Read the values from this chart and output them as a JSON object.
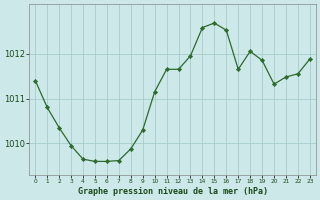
{
  "x": [
    0,
    1,
    2,
    3,
    4,
    5,
    6,
    7,
    8,
    9,
    10,
    11,
    12,
    13,
    14,
    15,
    16,
    17,
    18,
    19,
    20,
    21,
    22,
    23
  ],
  "y": [
    1011.4,
    1010.8,
    1010.35,
    1009.95,
    1009.65,
    1009.6,
    1009.6,
    1009.62,
    1009.88,
    1010.3,
    1011.15,
    1011.65,
    1011.65,
    1011.95,
    1012.58,
    1012.68,
    1012.52,
    1011.65,
    1012.05,
    1011.85,
    1011.32,
    1011.48,
    1011.55,
    1011.88
  ],
  "line_color": "#2d6a2d",
  "marker_color": "#2d6a2d",
  "bg_color": "#cce8e8",
  "grid_color": "#a8cccc",
  "xlabel": "Graphe pression niveau de la mer (hPa)",
  "xlabel_color": "#1a4a1a",
  "tick_color": "#1a4a1a",
  "yticks": [
    1010,
    1011,
    1012
  ],
  "ylim": [
    1009.3,
    1013.1
  ],
  "xlim": [
    -0.5,
    23.5
  ]
}
